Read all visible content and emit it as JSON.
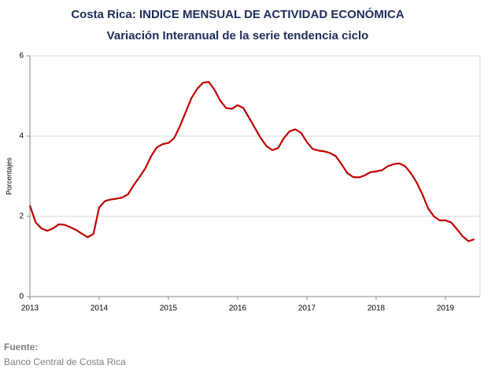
{
  "chart_data": {
    "type": "line",
    "title": "Costa Rica: INDICE MENSUAL DE ACTIVIDAD ECONÓMICA",
    "subtitle": "Variación Interanual de la serie tendencia ciclo",
    "y_label": "Porcentajes",
    "source_label": "Fuente:",
    "source": "Banco Central de Costa Rica",
    "x": [
      2013,
      2013.083,
      2013.167,
      2013.25,
      2013.333,
      2013.417,
      2013.5,
      2013.583,
      2013.667,
      2013.75,
      2013.833,
      2013.917,
      2014,
      2014.083,
      2014.167,
      2014.25,
      2014.333,
      2014.417,
      2014.5,
      2014.583,
      2014.667,
      2014.75,
      2014.833,
      2014.917,
      2015,
      2015.083,
      2015.167,
      2015.25,
      2015.333,
      2015.417,
      2015.5,
      2015.583,
      2015.667,
      2015.75,
      2015.833,
      2015.917,
      2016,
      2016.083,
      2016.167,
      2016.25,
      2016.333,
      2016.417,
      2016.5,
      2016.583,
      2016.667,
      2016.75,
      2016.833,
      2016.917,
      2017,
      2017.083,
      2017.167,
      2017.25,
      2017.333,
      2017.417,
      2017.5,
      2017.583,
      2017.667,
      2017.75,
      2017.833,
      2017.917,
      2018,
      2018.083,
      2018.167,
      2018.25,
      2018.333,
      2018.417,
      2018.5,
      2018.583,
      2018.667,
      2018.75,
      2018.833,
      2018.917,
      2019,
      2019.083,
      2019.167,
      2019.25,
      2019.333,
      2019.417
    ],
    "series": [
      {
        "color": "#c00000",
        "values": [
          2.27,
          1.85,
          1.7,
          1.64,
          1.7,
          1.8,
          1.79,
          1.73,
          1.66,
          1.57,
          1.48,
          1.56,
          2.22,
          2.38,
          2.42,
          2.44,
          2.47,
          2.55,
          2.78,
          2.98,
          3.2,
          3.5,
          3.72,
          3.8,
          3.83,
          3.95,
          4.25,
          4.6,
          4.95,
          5.18,
          5.33,
          5.35,
          5.15,
          4.88,
          4.7,
          4.68,
          4.77,
          4.7,
          4.45,
          4.2,
          3.95,
          3.75,
          3.65,
          3.7,
          3.95,
          4.12,
          4.17,
          4.08,
          3.85,
          3.68,
          3.64,
          3.62,
          3.58,
          3.5,
          3.3,
          3.08,
          2.98,
          2.97,
          3.02,
          3.1,
          3.12,
          3.15,
          3.25,
          3.3,
          3.32,
          3.25,
          3.08,
          2.85,
          2.55,
          2.2,
          2.0,
          1.9,
          1.9,
          1.85,
          1.68,
          1.5,
          1.38,
          1.43
        ]
      }
    ],
    "xlim": [
      2013,
      2019.5
    ],
    "xticks": [
      2013,
      2014,
      2015,
      2016,
      2017,
      2018,
      2019
    ],
    "ylim": [
      0,
      6
    ],
    "yticks": [
      0,
      2,
      4,
      6
    ],
    "grid": true
  }
}
